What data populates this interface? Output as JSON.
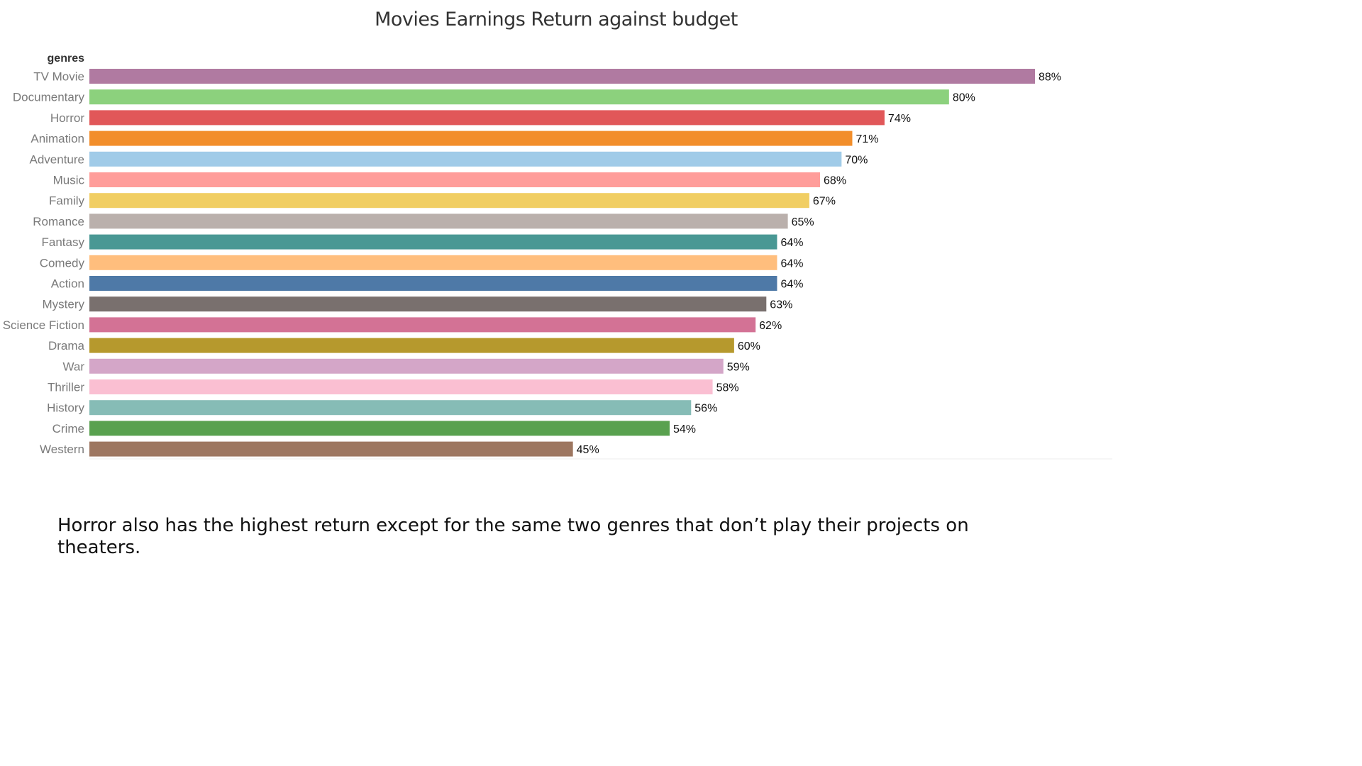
{
  "chart_data": {
    "type": "bar",
    "orientation": "horizontal",
    "title": "Movies Earnings Return against budget",
    "row_header": "genres",
    "value_format": "percent",
    "xlim": [
      0,
      100
    ],
    "grid": false,
    "legend": "none",
    "categories": [
      "TV Movie",
      "Documentary",
      "Horror",
      "Animation",
      "Adventure",
      "Music",
      "Family",
      "Romance",
      "Fantasy",
      "Comedy",
      "Action",
      "Mystery",
      "Science Fiction",
      "Drama",
      "War",
      "Thriller",
      "History",
      "Crime",
      "Western"
    ],
    "values": [
      88,
      80,
      74,
      71,
      70,
      68,
      67,
      65,
      64,
      64,
      64,
      63,
      62,
      60,
      59,
      58,
      56,
      54,
      45
    ],
    "value_labels": [
      "88%",
      "80%",
      "74%",
      "71%",
      "70%",
      "68%",
      "67%",
      "65%",
      "64%",
      "64%",
      "64%",
      "63%",
      "62%",
      "60%",
      "59%",
      "58%",
      "56%",
      "54%",
      "45%"
    ],
    "colors": [
      "#b07aa1",
      "#8cd17d",
      "#e15759",
      "#f28e2b",
      "#a0cbe8",
      "#ff9d9a",
      "#f1ce63",
      "#bab0ac",
      "#499894",
      "#ffbe7d",
      "#4e79a7",
      "#79706e",
      "#d37295",
      "#b6992d",
      "#d4a6c8",
      "#fabfd2",
      "#86bcb6",
      "#59a14f",
      "#9d7660"
    ]
  },
  "caption": "Horror also has the highest return except for the same two genres that don’t play their projects on theaters."
}
